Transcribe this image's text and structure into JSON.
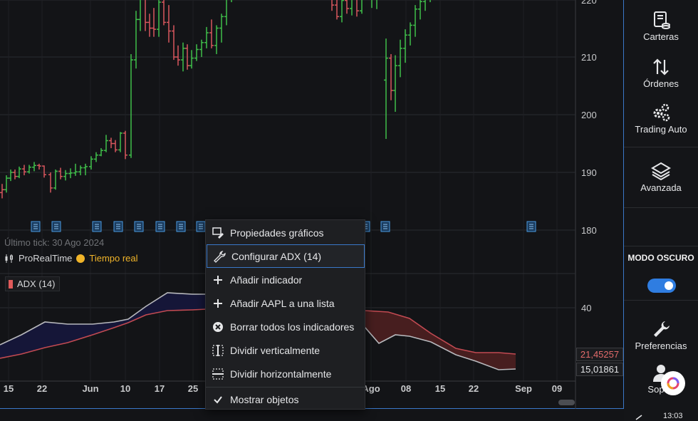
{
  "chart": {
    "last_tick": "Último tick: 30 Ago 2024",
    "source_name": "ProRealTime",
    "realtime_label": "Tiempo real",
    "indicator_label": "ADX (14)",
    "price_axis": [
      "220",
      "210",
      "200",
      "190",
      "180"
    ],
    "adx_axis": [
      "40"
    ],
    "tag_red": "21,45257",
    "tag_white": "15,01861",
    "date_axis": [
      "15",
      "22",
      "Jun",
      "10",
      "17",
      "25",
      "Ago",
      "08",
      "15",
      "22",
      "Sep",
      "09"
    ],
    "colors": {
      "up": "#3fbf4a",
      "down": "#d9565e",
      "adx_fill_a": "#15163a",
      "adx_fill_b": "#4a1f20",
      "accent": "#3a78c9"
    }
  },
  "context_menu": {
    "items": [
      {
        "label": "Propiedades gráficos",
        "icon": "chart-properties-icon"
      },
      {
        "label": "Configurar ADX (14)",
        "icon": "wrench-icon"
      },
      {
        "label": "Añadir indicador",
        "icon": "plus-icon"
      },
      {
        "label": "Añadir AAPL a una lista",
        "icon": "plus-icon"
      },
      {
        "label": "Borrar todos los indicadores",
        "icon": "close-circle-icon"
      },
      {
        "label": "Dividir verticalmente",
        "icon": "split-vertical-icon"
      },
      {
        "label": "Dividir horizontalmente",
        "icon": "split-horizontal-icon"
      },
      {
        "label": "Mostrar objetos",
        "icon": "check-icon"
      }
    ]
  },
  "sidebar": {
    "carteras": "Carteras",
    "ordenes": "Órdenes",
    "trading_auto": "Trading Auto",
    "avanzada": "Avanzada",
    "modo_oscuro": "MODO OSCURO",
    "preferencias": "Preferencias",
    "soporte": "Sop",
    "clock": "13:03"
  }
}
